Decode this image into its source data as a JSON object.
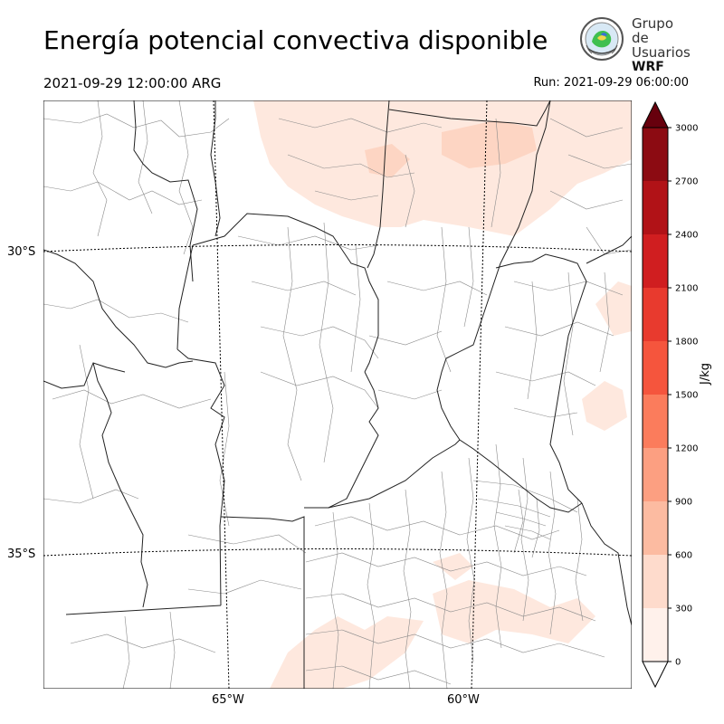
{
  "header": {
    "title": "Energía potencial convectiva disponible",
    "valid_time": "2021-09-29 12:00:00 ARG",
    "run_time": "Run: 2021-09-29 06:00:00"
  },
  "logo": {
    "line1": "Grupo de",
    "line2": "Usuarios",
    "line3": "WRF"
  },
  "map": {
    "lat_labels": [
      "30°S",
      "35°S"
    ],
    "lon_labels": [
      "65°W",
      "60°W"
    ],
    "colors": {
      "border_province": "#222222",
      "border_department": "#8a8a8a",
      "graticule": "#000000",
      "cape_low": "#fee8de",
      "cape_mid": "#fdd5c3"
    }
  },
  "colorbar": {
    "unit": "J/kg",
    "ticks": [
      "0",
      "300",
      "600",
      "900",
      "1200",
      "1500",
      "1800",
      "2100",
      "2400",
      "2700",
      "3000"
    ],
    "colors": [
      "#fff1eb",
      "#fedbcc",
      "#fcbba1",
      "#fc9f81",
      "#fb7c5c",
      "#f5553d",
      "#e83a2e",
      "#d01e20",
      "#b11217",
      "#8c0b12",
      "#67000d"
    ]
  }
}
